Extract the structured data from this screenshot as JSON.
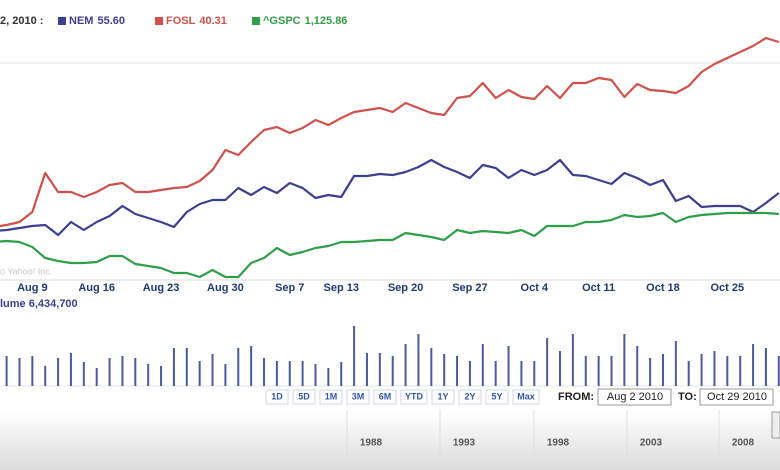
{
  "chart_data": [
    {
      "type": "line",
      "legend_prefix": "2, 2010 :",
      "watermark": "o Yahoo! Inc.",
      "categories": [
        null,
        null,
        null,
        null,
        null,
        "Aug 9",
        null,
        null,
        null,
        null,
        "Aug 16",
        null,
        null,
        null,
        null,
        "Aug 23",
        null,
        null,
        null,
        null,
        "Aug 30",
        null,
        null,
        null,
        null,
        "Sep 7",
        null,
        null,
        null,
        "Sep 13",
        null,
        null,
        null,
        null,
        "Sep 20",
        null,
        null,
        null,
        null,
        "Sep 27",
        null,
        null,
        null,
        null,
        "Oct 4",
        null,
        null,
        null,
        null,
        "Oct 11",
        null,
        null,
        null,
        null,
        "Oct 18",
        null,
        null,
        null,
        null,
        "Oct 25",
        null,
        null,
        null,
        null
      ],
      "ylim": [
        0,
        270
      ],
      "series": [
        {
          "name": "NEM",
          "legend_label": "55.60",
          "color": "#3c3f8f",
          "values": [
            44,
            47,
            49,
            50,
            52,
            54,
            55,
            45,
            58,
            50,
            58,
            64,
            74,
            66,
            62,
            58,
            53,
            68,
            76,
            80,
            80,
            92,
            85,
            93,
            87,
            97,
            92,
            82,
            85,
            83,
            104,
            104,
            106,
            105,
            108,
            113,
            120,
            113,
            108,
            102,
            115,
            112,
            102,
            110,
            105,
            110,
            120,
            105,
            104,
            100,
            96,
            107,
            102,
            95,
            100,
            79,
            84,
            73,
            74,
            74,
            74,
            68,
            77,
            87
          ]
        },
        {
          "name": "FOSL",
          "legend_label": "40.31",
          "color": "#d0504a",
          "values": [
            52,
            52,
            53,
            55,
            58,
            68,
            107,
            88,
            88,
            83,
            88,
            95,
            97,
            88,
            88,
            90,
            92,
            93,
            99,
            110,
            130,
            125,
            138,
            150,
            153,
            147,
            152,
            160,
            155,
            162,
            168,
            170,
            172,
            168,
            177,
            172,
            167,
            165,
            182,
            184,
            197,
            182,
            190,
            183,
            181,
            194,
            182,
            197,
            197,
            202,
            200,
            183,
            196,
            190,
            189,
            187,
            194,
            208,
            216,
            222,
            228,
            234,
            242,
            238
          ]
        },
        {
          "name": "^GSPC",
          "legend_label": "1,125.86",
          "color": "#2e9e48",
          "values": [
            40,
            40,
            38,
            39,
            38,
            33,
            22,
            19,
            17,
            17,
            18,
            24,
            24,
            16,
            14,
            12,
            7,
            7,
            3,
            10,
            3,
            3,
            17,
            22,
            32,
            25,
            28,
            32,
            34,
            38,
            38,
            39,
            40,
            40,
            47,
            45,
            43,
            40,
            50,
            47,
            49,
            48,
            47,
            50,
            44,
            54,
            54,
            54,
            58,
            58,
            60,
            65,
            63,
            64,
            67,
            58,
            63,
            65,
            66,
            67,
            67,
            67,
            67,
            66
          ]
        }
      ]
    },
    {
      "type": "bar",
      "title": "lume 6,434,700",
      "color": "#4a5aa0",
      "ylim": [
        0,
        60
      ],
      "values": [
        30,
        32,
        28,
        30,
        28,
        30,
        20,
        28,
        33,
        24,
        18,
        28,
        30,
        28,
        22,
        20,
        38,
        38,
        25,
        32,
        22,
        38,
        40,
        28,
        25,
        25,
        25,
        22,
        18,
        24,
        60,
        33,
        33,
        30,
        42,
        52,
        38,
        32,
        30,
        25,
        42,
        25,
        40,
        25,
        25,
        48,
        35,
        52,
        30,
        30,
        30,
        52,
        40,
        28,
        32,
        45,
        25,
        32,
        35,
        30,
        30,
        42,
        38,
        30
      ]
    }
  ],
  "range_buttons": [
    "1D",
    "5D",
    "1M",
    "3M",
    "6M",
    "YTD",
    "1Y",
    "2Y",
    "5Y",
    "Max"
  ],
  "from_label": "FROM:",
  "from_value": "Aug 2 2010",
  "to_label": "TO:",
  "to_value": "Oct 29 2010",
  "timeline_years": [
    1988,
    1993,
    1998,
    2003,
    2008
  ]
}
